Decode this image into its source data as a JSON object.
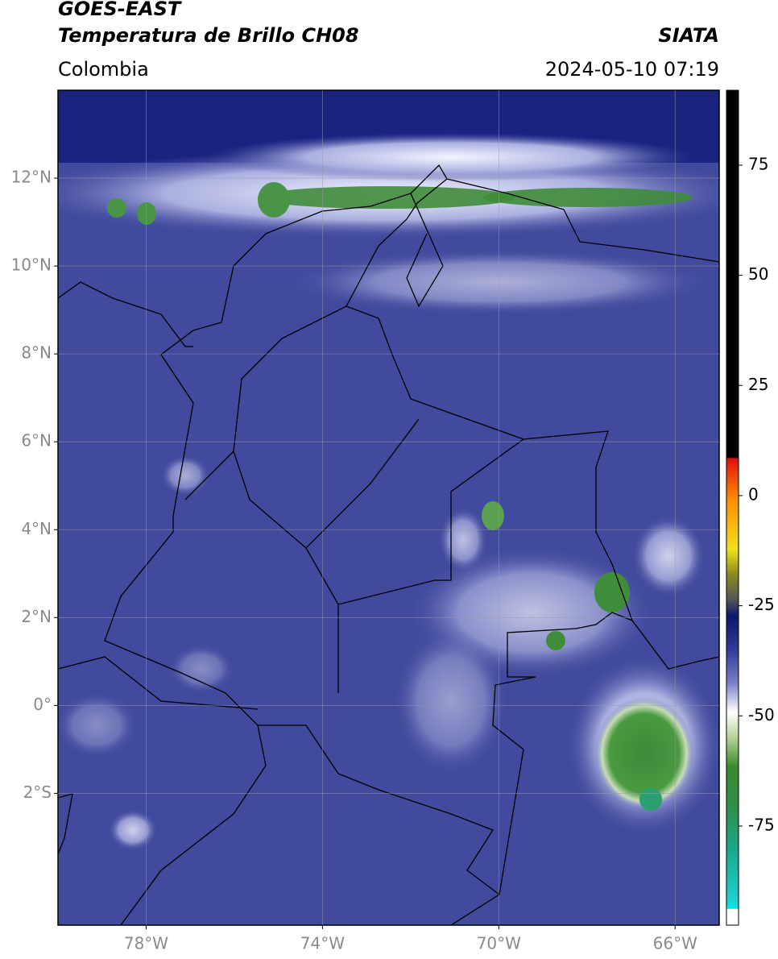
{
  "header": {
    "title": "GOES-EAST",
    "subtitle": "Temperatura de Brillo CH08",
    "region": "Colombia",
    "source": "SIATA",
    "timestamp": "2024-05-10 07:19"
  },
  "map": {
    "lat_range": [
      -5,
      14
    ],
    "lon_range": [
      -80,
      -65
    ],
    "lat_ticks": [
      {
        "value": 12,
        "label": "12°N"
      },
      {
        "value": 10,
        "label": "10°N"
      },
      {
        "value": 8,
        "label": "8°N"
      },
      {
        "value": 6,
        "label": "6°N"
      },
      {
        "value": 4,
        "label": "4°N"
      },
      {
        "value": 2,
        "label": "2°N"
      },
      {
        "value": 0,
        "label": "0°"
      },
      {
        "value": -2,
        "label": "2°S"
      }
    ],
    "lon_ticks": [
      {
        "value": -78,
        "label": "78°W"
      },
      {
        "value": -74,
        "label": "74°W"
      },
      {
        "value": -70,
        "label": "70°W"
      },
      {
        "value": -66,
        "label": "66°W"
      }
    ]
  },
  "colorbar": {
    "range": [
      -97.5,
      92
    ],
    "ticks": [
      75,
      50,
      25,
      0,
      -25,
      -50,
      -75
    ]
  }
}
